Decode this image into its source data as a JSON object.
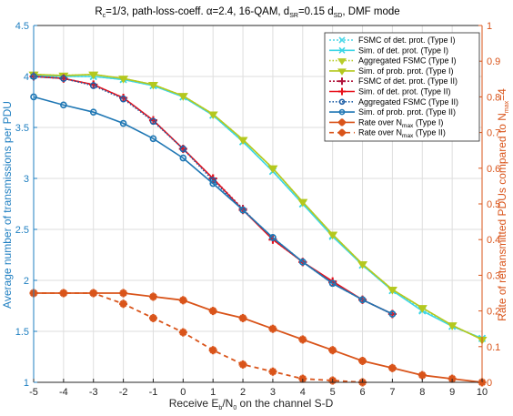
{
  "chart_data": {
    "type": "line",
    "title_parts": {
      "r": "R",
      "r_sub": "c",
      "r_val": "=1/3,  path-loss-coeff. α=2.4,  16-QAM,  d",
      "d_sub1": "SR",
      "mid": "=0.15 d",
      "d_sub2": "SD",
      "tail": ",   DMF mode"
    },
    "xlabel_parts": {
      "a": "Receive E",
      "a_sub": "b",
      "b": "/N",
      "b_sub": "0",
      "c": " on the channel S-D"
    },
    "ylabel_left": "Average number of transmissions per PDU",
    "ylabel_right_parts": {
      "a": "Rate of retransmitted PDUs compared to N",
      "a_sub": "max",
      "b": "=4"
    },
    "x_ticks": [
      "-5",
      "-4",
      "-3",
      "-2",
      "-1",
      "0",
      "1",
      "2",
      "3",
      "4",
      "5",
      "6",
      "7",
      "8",
      "9",
      "10"
    ],
    "y_left_ticks": [
      "1",
      "1.5",
      "2",
      "2.5",
      "3",
      "3.5",
      "4",
      "4.5"
    ],
    "y_right_ticks": [
      "0",
      "0.1",
      "0.2",
      "0.3",
      "0.4",
      "0.5",
      "0.6",
      "0.7",
      "0.8",
      "0.9",
      "1"
    ],
    "xlim": [
      -5,
      10
    ],
    "ylim_left": [
      1,
      4.5
    ],
    "ylim_right": [
      0,
      1
    ],
    "grid": true,
    "legend_position": "top-right",
    "colors": {
      "left_axis": "#1f7fc1",
      "right_axis": "#d9541a"
    },
    "series": [
      {
        "name": "FSMC of det. prot. (Type I)",
        "axis": "left",
        "color": "#4fd8e8",
        "dash": "2,2",
        "marker": "x",
        "x": [
          -5,
          -4,
          -3,
          -2,
          -1,
          0,
          1,
          2,
          3,
          4,
          5,
          6,
          7,
          8,
          9,
          10
        ],
        "y": [
          4.01,
          4.0,
          4.0,
          3.97,
          3.91,
          3.8,
          3.62,
          3.36,
          3.07,
          2.75,
          2.44,
          2.15,
          1.9,
          1.71,
          1.55,
          1.43
        ]
      },
      {
        "name": "Sim. of det. prot. (Type I)",
        "axis": "left",
        "color": "#3dd6e6",
        "dash": "",
        "marker": "x",
        "x": [
          -5,
          -4,
          -3,
          -2,
          -1,
          0,
          1,
          2,
          3,
          4,
          5,
          6,
          7,
          8,
          9,
          10
        ],
        "y": [
          4.01,
          4.0,
          4.0,
          3.97,
          3.91,
          3.8,
          3.62,
          3.36,
          3.07,
          2.75,
          2.43,
          2.15,
          1.9,
          1.7,
          1.55,
          1.43
        ]
      },
      {
        "name": "Aggregated FSMC (Type I)",
        "axis": "left",
        "color": "#b8cc2a",
        "dash": "1.5,2",
        "marker": "tri-down",
        "x": [
          -5,
          -4,
          -3,
          -2,
          -1,
          0,
          1,
          2,
          3,
          4,
          5,
          6,
          7,
          8,
          9,
          10
        ],
        "y": [
          4.02,
          4.01,
          4.02,
          3.98,
          3.92,
          3.81,
          3.63,
          3.38,
          3.1,
          2.77,
          2.45,
          2.16,
          1.91,
          1.73,
          1.56,
          1.42
        ]
      },
      {
        "name": "Sim. of prob. prot. (Type I)",
        "axis": "left",
        "color": "#b4c81e",
        "dash": "",
        "marker": "tri-down",
        "x": [
          -5,
          -4,
          -3,
          -2,
          -1,
          0,
          1,
          2,
          3,
          4,
          5,
          6,
          7,
          8,
          9,
          10
        ],
        "y": [
          4.02,
          4.01,
          4.02,
          3.98,
          3.92,
          3.81,
          3.63,
          3.38,
          3.1,
          2.77,
          2.45,
          2.16,
          1.91,
          1.73,
          1.56,
          1.42
        ]
      },
      {
        "name": "FSMC of det. prot. (Type II)",
        "axis": "left",
        "color": "#b0153c",
        "dash": "2,2",
        "marker": "plus",
        "x": [
          -5,
          -4,
          -3,
          -2,
          -1,
          0,
          1,
          2,
          3,
          4,
          5,
          6,
          7
        ],
        "y": [
          4.0,
          3.98,
          3.92,
          3.79,
          3.57,
          3.29,
          3.0,
          2.7,
          2.4,
          2.18,
          1.98,
          1.81,
          1.67
        ]
      },
      {
        "name": "Sim. of det. prot. (Type II)",
        "axis": "left",
        "color": "#e8101a",
        "dash": "",
        "marker": "plus",
        "x": [
          -5,
          -4,
          -3,
          -2,
          -1,
          0,
          1,
          2,
          3,
          4,
          5,
          6,
          7
        ],
        "y": [
          4.0,
          3.98,
          3.92,
          3.79,
          3.57,
          3.29,
          3.0,
          2.69,
          2.4,
          2.18,
          1.99,
          1.81,
          1.67
        ]
      },
      {
        "name": "Aggregated FSMC (Type II)",
        "axis": "left",
        "color": "#1f5fa6",
        "dash": "1.5,2",
        "marker": "circle",
        "x": [
          -5,
          -4,
          -3,
          -2,
          -1,
          0,
          1,
          2,
          3,
          4,
          5,
          6,
          7
        ],
        "y": [
          4.0,
          3.98,
          3.91,
          3.78,
          3.56,
          3.29,
          2.98,
          2.69,
          2.42,
          2.18,
          1.97,
          1.81,
          1.67
        ]
      },
      {
        "name": "Sim. of prob. prot. (Type II)",
        "axis": "left",
        "color": "#1f77b4",
        "dash": "",
        "marker": "circle",
        "x": [
          -5,
          -4,
          -3,
          -2,
          -1,
          0,
          1,
          2,
          3,
          4,
          5,
          6,
          7
        ],
        "y": [
          3.8,
          3.72,
          3.65,
          3.54,
          3.39,
          3.2,
          2.95,
          2.69,
          2.42,
          2.18,
          1.97,
          1.81,
          1.67
        ]
      },
      {
        "name": "Rate over N_max (Type I)",
        "axis": "right",
        "color": "#d9541a",
        "dash": "",
        "marker": "star",
        "x": [
          -5,
          -4,
          -3,
          -2,
          -1,
          0,
          1,
          2,
          3,
          4,
          5,
          6,
          7,
          8,
          9,
          10
        ],
        "y": [
          0.25,
          0.25,
          0.25,
          0.25,
          0.24,
          0.23,
          0.2,
          0.18,
          0.15,
          0.12,
          0.09,
          0.06,
          0.04,
          0.02,
          0.01,
          0.0
        ]
      },
      {
        "name": "Rate over N_max (Type II)",
        "axis": "right",
        "color": "#d9541a",
        "dash": "5,4",
        "marker": "star",
        "x": [
          -5,
          -4,
          -3,
          -2,
          -1,
          0,
          1,
          2,
          3,
          4,
          5,
          6
        ],
        "y": [
          0.25,
          0.25,
          0.25,
          0.22,
          0.18,
          0.14,
          0.09,
          0.05,
          0.03,
          0.01,
          0.005,
          0.0
        ]
      }
    ],
    "legend": [
      {
        "text": "FSMC of det. prot. (Type I)"
      },
      {
        "text": "Sim. of det. prot. (Type I)"
      },
      {
        "text": "Aggregated FSMC (Type I)"
      },
      {
        "text": "Sim. of prob. prot. (Type I)"
      },
      {
        "text": "FSMC of det. prot. (Type II)"
      },
      {
        "text": "Sim. of det. prot. (Type II)"
      },
      {
        "text": "Aggregated FSMC (Type II)"
      },
      {
        "text": "Sim. of prob. prot. (Type II)"
      },
      {
        "text": "Rate over N",
        "sub": "max",
        "tail": " (Type I)"
      },
      {
        "text": "Rate over N",
        "sub": "max",
        "tail": " (Type II)"
      }
    ]
  }
}
